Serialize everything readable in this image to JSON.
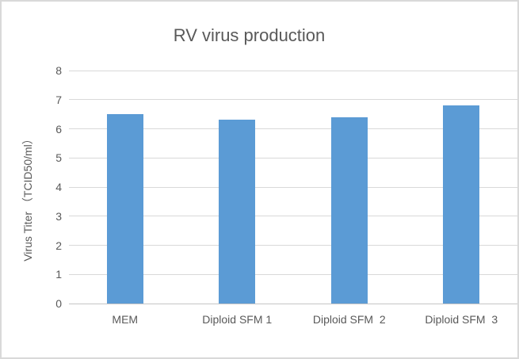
{
  "chart_data": {
    "type": "bar",
    "title": "RV virus production",
    "categories": [
      "MEM",
      "Diploid SFM 1",
      "Diploid SFM  2",
      "Diploid SFM  3"
    ],
    "values": [
      6.5,
      6.3,
      6.4,
      6.8
    ],
    "series": [
      {
        "name": "Virus Titer",
        "values": [
          6.5,
          6.3,
          6.4,
          6.8
        ]
      }
    ],
    "xlabel": "",
    "ylabel": "Virus Titer （TCID50/ml）",
    "ylim": [
      0,
      8
    ],
    "ytick_step": 1,
    "ytick_labels": [
      "0",
      "1",
      "2",
      "3",
      "4",
      "5",
      "6",
      "7",
      "8"
    ],
    "grid": true,
    "legend": false,
    "colors": {
      "bar_fill": "#5B9BD5",
      "gridline": "#D9D9D9",
      "axis_line": "#C6C6C6",
      "text": "#595959",
      "frame_border": "#D9D9D9",
      "background": "#FFFFFF"
    }
  }
}
